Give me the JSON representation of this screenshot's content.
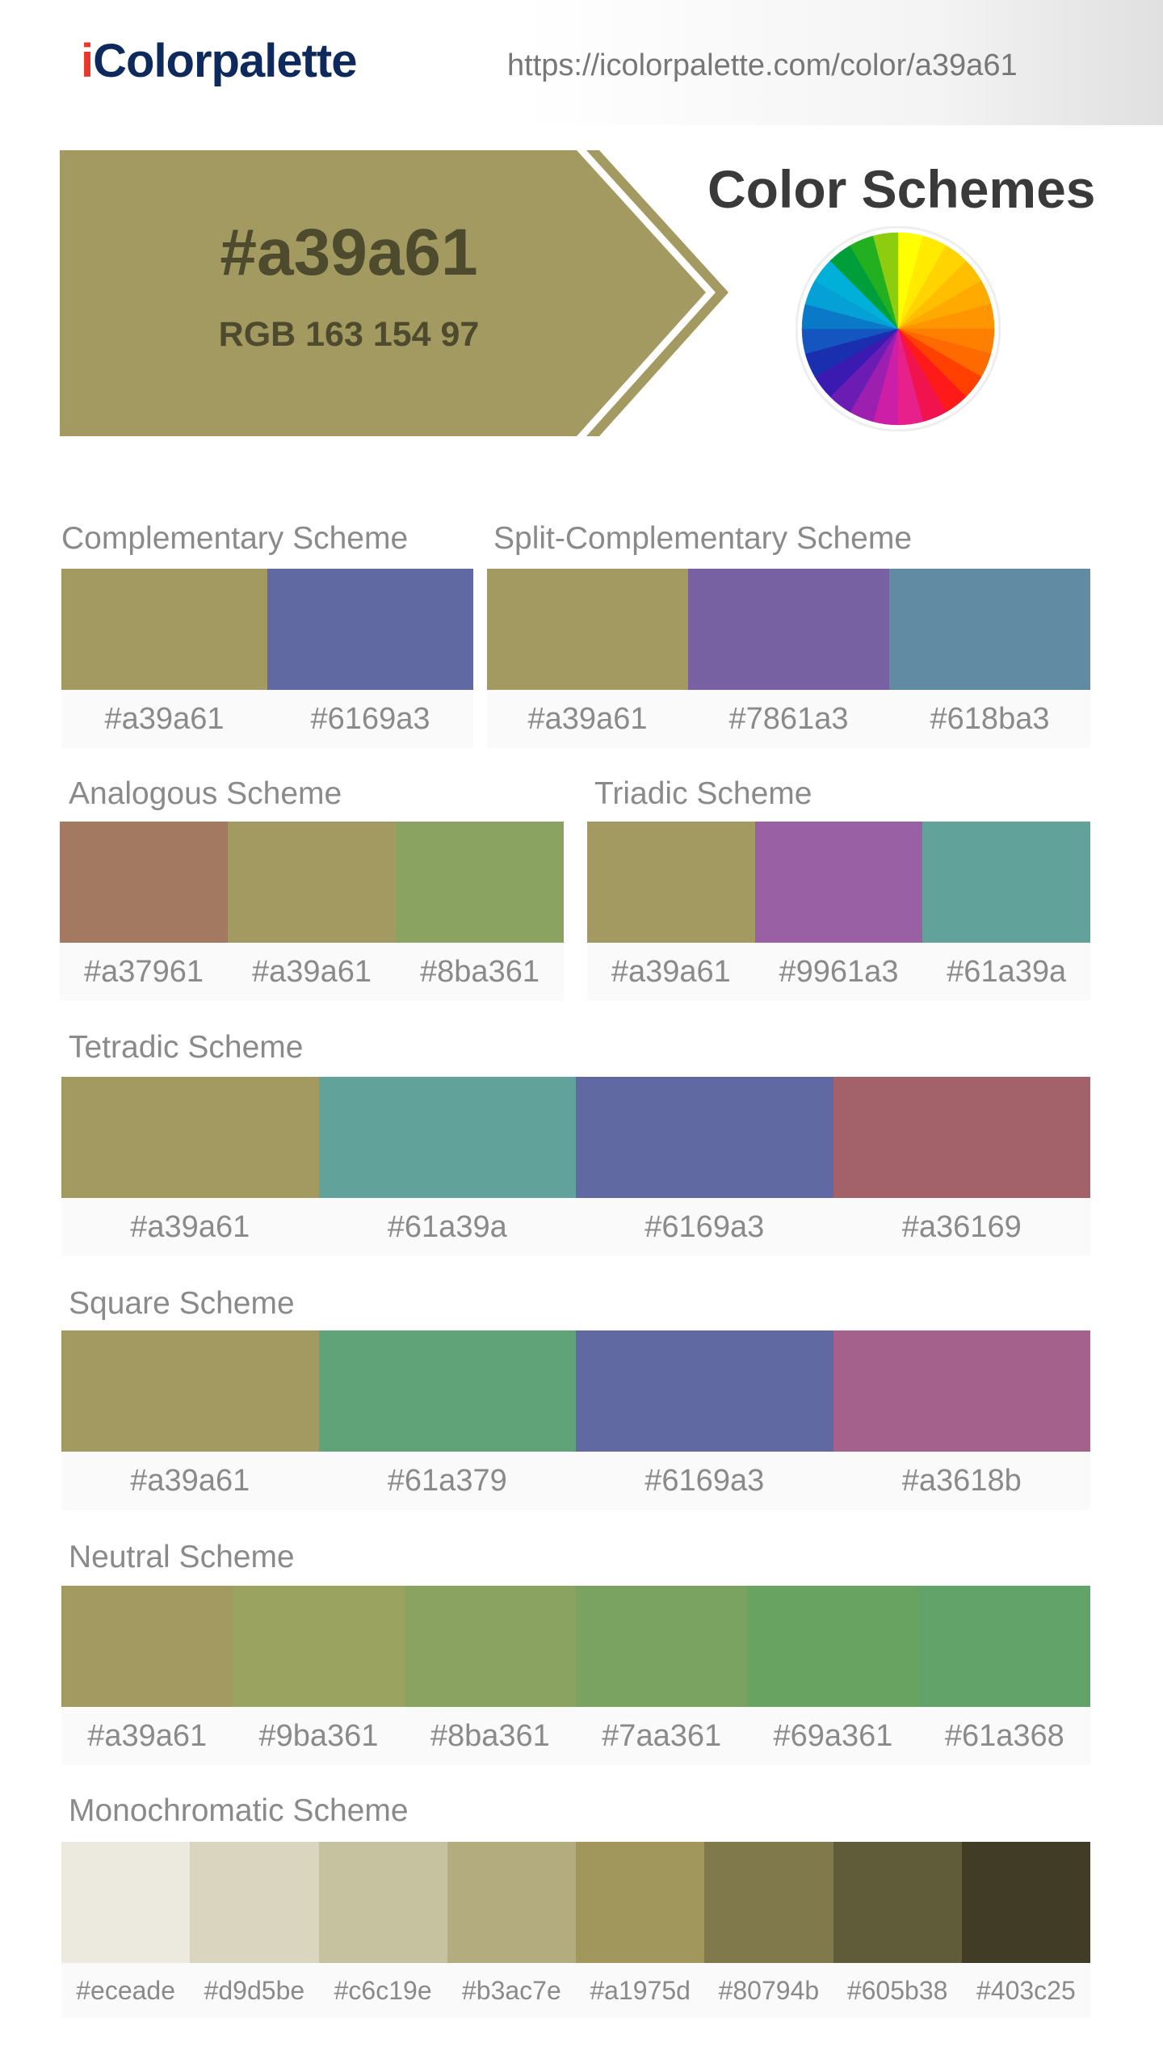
{
  "header": {
    "logo_i": "i",
    "logo_rest": "Colorpalette",
    "url": "https://icolorpalette.com/color/a39a61"
  },
  "hero": {
    "hex": "#a39a61",
    "rgb": "RGB 163 154 97",
    "color": "#a39a61",
    "text_color": "#4d4a2d"
  },
  "color_schemes_title": "Color Schemes",
  "color_wheel": {
    "icon": "color-wheel-icon",
    "colors": [
      "#ffff00",
      "#ffea00",
      "#ffd400",
      "#ffbf00",
      "#ffaa00",
      "#ff9500",
      "#ff8000",
      "#ff6a00",
      "#ff4000",
      "#ff1a1a",
      "#f0134e",
      "#e8208c",
      "#cc1ea6",
      "#9c1fb0",
      "#6a1cb3",
      "#3a1ab0",
      "#1a2eb0",
      "#1455c0",
      "#0a7ac8",
      "#05a0d6",
      "#00b0d8",
      "#009e3a",
      "#22b020",
      "#8ecc10"
    ]
  },
  "schemes": [
    {
      "id": "complementary",
      "title": "Complementary Scheme",
      "colors": [
        "#a39a61",
        "#6169a3"
      ]
    },
    {
      "id": "split-complementary",
      "title": "Split-Complementary Scheme",
      "colors": [
        "#a39a61",
        "#7861a3",
        "#618ba3"
      ]
    },
    {
      "id": "analogous",
      "title": "Analogous Scheme",
      "colors": [
        "#a37961",
        "#a39a61",
        "#8ba361"
      ]
    },
    {
      "id": "triadic",
      "title": "Triadic Scheme",
      "colors": [
        "#a39a61",
        "#9961a3",
        "#61a39a"
      ]
    },
    {
      "id": "tetradic",
      "title": "Tetradic Scheme",
      "colors": [
        "#a39a61",
        "#61a39a",
        "#6169a3",
        "#a36169"
      ]
    },
    {
      "id": "square",
      "title": "Square Scheme",
      "colors": [
        "#a39a61",
        "#61a379",
        "#6169a3",
        "#a3618b"
      ]
    },
    {
      "id": "neutral",
      "title": "Neutral Scheme",
      "colors": [
        "#a39a61",
        "#9ba361",
        "#8ba361",
        "#7aa361",
        "#69a361",
        "#61a368"
      ]
    },
    {
      "id": "monochromatic",
      "title": "Monochromatic Scheme",
      "colors": [
        "#eceade",
        "#d9d5be",
        "#c6c19e",
        "#b3ac7e",
        "#a1975d",
        "#80794b",
        "#605b38",
        "#403c25"
      ]
    }
  ]
}
